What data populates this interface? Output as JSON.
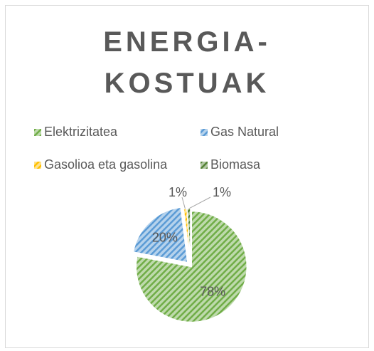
{
  "chart_data": {
    "type": "pie",
    "title": "ENERGIA-KOSTUAK",
    "categories": [
      "Elektrizitatea",
      "Gas Natural",
      "Gasolioa eta gasolina",
      "Biomasa"
    ],
    "values": [
      78,
      20,
      1,
      1
    ],
    "value_labels": [
      "78%",
      "20%",
      "1%",
      "1%"
    ],
    "colors": [
      "#70ad47",
      "#5b9bd5",
      "#ffc000",
      "#548235"
    ],
    "legend": "top"
  }
}
